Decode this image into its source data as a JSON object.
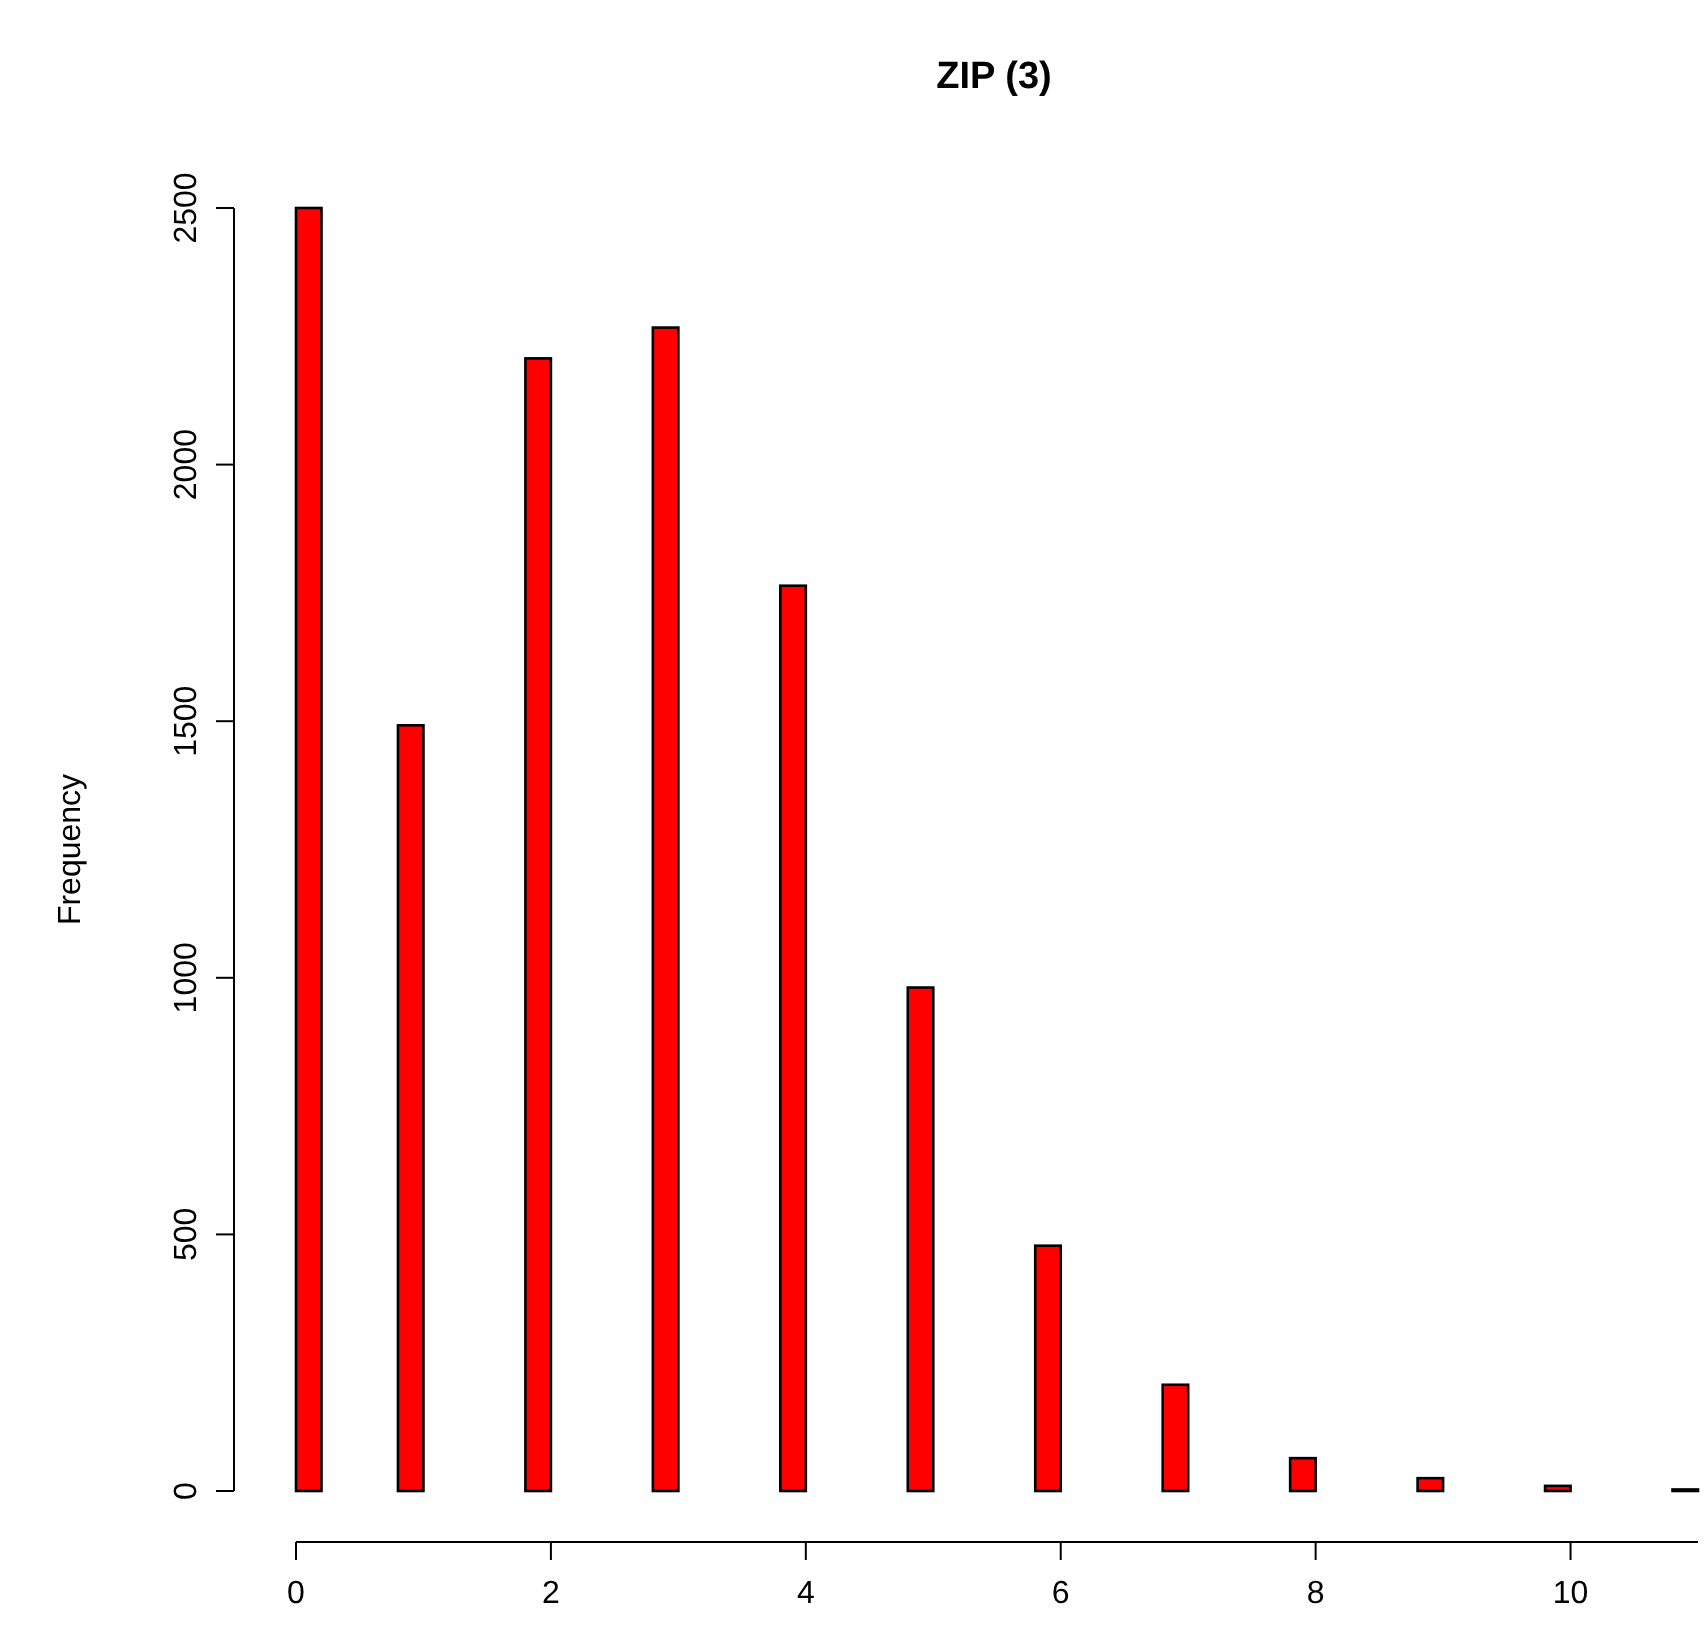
{
  "chart_data": {
    "type": "histogram",
    "title": "ZIP (3)",
    "ylabel": "Frequency",
    "color": "#ff0000",
    "bins": [
      0,
      0.2,
      0.4,
      0.6,
      0.8,
      1,
      1.2,
      1.4,
      1.6,
      1.8,
      2,
      2.2,
      2.4,
      2.6,
      2.8,
      3,
      3.2,
      3.4,
      3.6,
      3.8,
      4,
      4.2,
      4.4,
      4.6,
      4.8,
      5,
      5.2,
      5.4,
      5.6,
      5.8,
      6,
      6.2,
      6.4,
      6.6,
      6.8,
      7,
      7.2,
      7.4,
      7.6,
      7.8,
      8,
      8.2,
      8.4,
      8.6,
      8.8,
      9,
      9.2,
      9.4,
      9.6,
      9.8,
      10,
      10.2,
      10.4,
      10.6,
      10.8,
      11
    ],
    "values": [
      2500,
      0,
      0,
      0,
      1492,
      0,
      0,
      0,
      0,
      2207,
      0,
      0,
      0,
      0,
      2267,
      0,
      0,
      0,
      0,
      1764,
      0,
      0,
      0,
      0,
      981,
      0,
      0,
      0,
      0,
      478,
      0,
      0,
      0,
      0,
      207,
      0,
      0,
      0,
      0,
      64,
      0,
      0,
      0,
      0,
      25,
      0,
      0,
      0,
      0,
      10,
      0,
      0,
      0,
      0,
      3
    ],
    "xlim": [
      0,
      11
    ],
    "ylim": [
      0,
      2500
    ],
    "xticks": [
      0,
      2,
      4,
      6,
      8,
      10
    ],
    "yticks": [
      0,
      500,
      1000,
      1500,
      2000,
      2500
    ],
    "grid": false
  }
}
